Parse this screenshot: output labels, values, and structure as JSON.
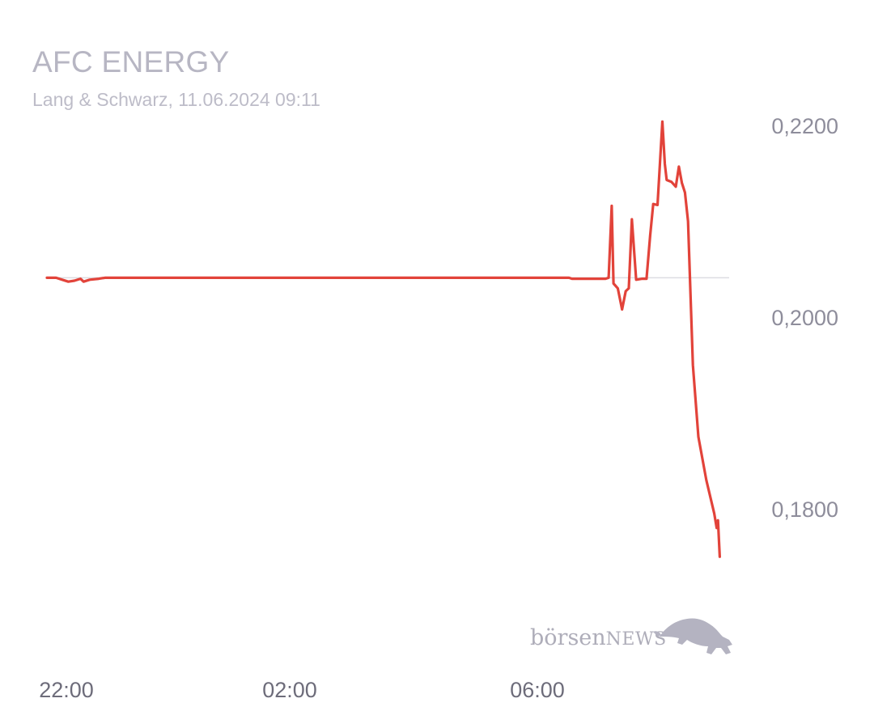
{
  "chart_data": {
    "type": "line",
    "title": "AFC ENERGY",
    "subtitle": "Lang & Schwarz, 11.06.2024 09:11",
    "x_tick_labels": [
      "22:00",
      "02:00",
      "06:00"
    ],
    "y_tick_values": [
      0.22,
      0.2,
      0.18
    ],
    "y_tick_labels": [
      "0,2200",
      "0,2000",
      "0,1800"
    ],
    "x_unit": "hours since 22:00",
    "xlim": [
      -0.15,
      11.05
    ],
    "ylim": [
      0.1752,
      0.2213
    ],
    "reference_value": 0.2041,
    "series": [
      {
        "name": "",
        "color": "#e2433a",
        "points": [
          [
            -0.15,
            0.2041
          ],
          [
            0.0,
            0.2041
          ],
          [
            0.1,
            0.2039
          ],
          [
            0.2,
            0.2037
          ],
          [
            0.3,
            0.2038
          ],
          [
            0.4,
            0.204
          ],
          [
            0.45,
            0.2037
          ],
          [
            0.55,
            0.2039
          ],
          [
            0.7,
            0.204
          ],
          [
            0.8,
            0.2041
          ],
          [
            1.0,
            0.2041
          ],
          [
            8.4,
            0.2041
          ],
          [
            8.45,
            0.204
          ],
          [
            9.0,
            0.204
          ],
          [
            9.05,
            0.2041
          ],
          [
            9.1,
            0.2116
          ],
          [
            9.13,
            0.2035
          ],
          [
            9.2,
            0.203
          ],
          [
            9.27,
            0.2008
          ],
          [
            9.33,
            0.2027
          ],
          [
            9.38,
            0.203
          ],
          [
            9.43,
            0.2102
          ],
          [
            9.5,
            0.2039
          ],
          [
            9.6,
            0.204
          ],
          [
            9.67,
            0.204
          ],
          [
            9.73,
            0.2085
          ],
          [
            9.78,
            0.2118
          ],
          [
            9.85,
            0.2117
          ],
          [
            9.93,
            0.2204
          ],
          [
            9.97,
            0.216
          ],
          [
            10.0,
            0.2143
          ],
          [
            10.08,
            0.2141
          ],
          [
            10.15,
            0.2136
          ],
          [
            10.2,
            0.2157
          ],
          [
            10.25,
            0.214
          ],
          [
            10.3,
            0.213
          ],
          [
            10.35,
            0.21
          ],
          [
            10.43,
            0.195
          ],
          [
            10.52,
            0.1875
          ],
          [
            10.65,
            0.183
          ],
          [
            10.78,
            0.1795
          ],
          [
            10.82,
            0.178
          ],
          [
            10.84,
            0.1788
          ],
          [
            10.87,
            0.175
          ]
        ]
      }
    ]
  },
  "logo": {
    "part1": "börsen",
    "part2": "NEWS",
    "color": "#b0afbc"
  }
}
